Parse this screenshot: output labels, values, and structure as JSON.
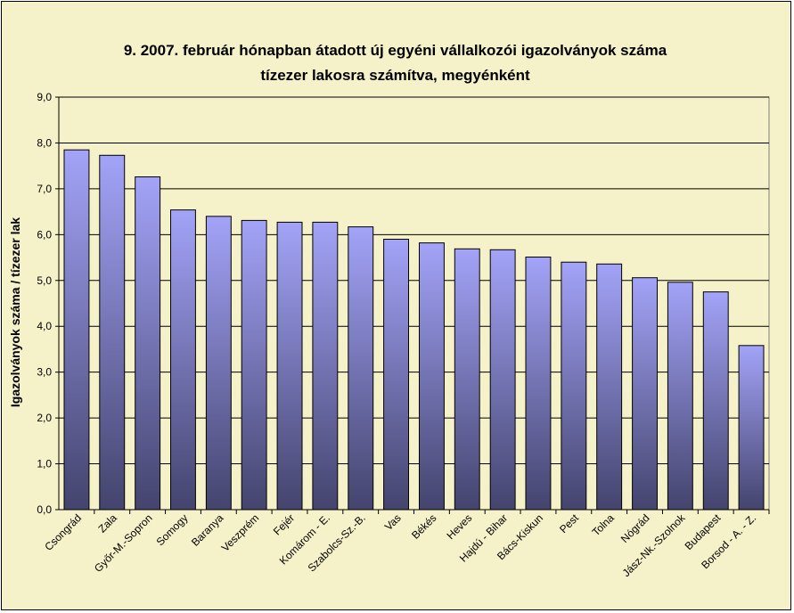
{
  "chart_data": {
    "type": "bar",
    "title_line1": "9.   2007. február hónapban átadott új egyéni vállalkozói  igazolványok száma",
    "title_line2": "tízezer lakosra számítva, megyénként",
    "xlabel": "",
    "ylabel": "Igazolványok száma / tízezer lak",
    "ylim": [
      0,
      9
    ],
    "ytick_step": 1,
    "ytick_labels": [
      "0,0",
      "1,0",
      "2,0",
      "3,0",
      "4,0",
      "5,0",
      "6,0",
      "7,0",
      "8,0",
      "9,0"
    ],
    "grid": true,
    "categories": [
      "Csongrád",
      "Zala",
      "Győr-M.-Sopron",
      "Somogy",
      "Baranya",
      "Veszprém",
      "Fejér",
      "Komárom - E.",
      "Szabolcs-Sz.-B.",
      "Vas",
      "Békés",
      "Heves",
      "Hajdú - Bihar",
      "Bács-Kiskun",
      "Pest",
      "Tolna",
      "Nógrád",
      "Jász-Nk.-Szolnok",
      "Budapest",
      "Borsod - A. - Z."
    ],
    "values": [
      7.85,
      7.73,
      7.26,
      6.54,
      6.4,
      6.31,
      6.27,
      6.27,
      6.17,
      5.9,
      5.82,
      5.69,
      5.67,
      5.51,
      5.4,
      5.36,
      5.06,
      4.96,
      4.75,
      3.58
    ],
    "colors": {
      "bar_top": "#a3a3f8",
      "bar_bottom": "#44446e",
      "plot_bg": "#f5f1c8",
      "frame_bg": "#f5f1c8"
    }
  }
}
